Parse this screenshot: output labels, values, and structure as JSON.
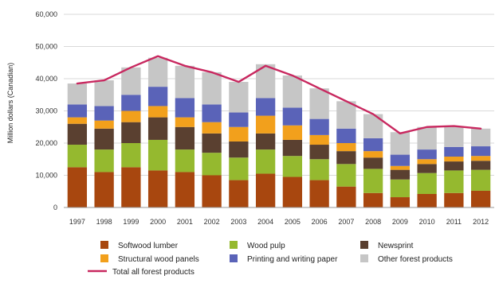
{
  "chart_data": {
    "type": "bar",
    "stacked": true,
    "ylabel": "Million dollars (Canadian)",
    "xlabel": "",
    "ylim": [
      0,
      60000
    ],
    "yticks": [
      0,
      10000,
      20000,
      30000,
      40000,
      50000,
      60000
    ],
    "ytick_labels": [
      "0",
      "10,000",
      "20,000",
      "30,000",
      "40,000",
      "50,000",
      "60,000"
    ],
    "grid": true,
    "legend_position": "bottom",
    "categories": [
      "1997",
      "1998",
      "1999",
      "2000",
      "2001",
      "2002",
      "2003",
      "2004",
      "2005",
      "2006",
      "2007",
      "2008",
      "2009",
      "2010",
      "2011",
      "2012"
    ],
    "series": [
      {
        "name": "Softwood lumber",
        "color": "#a8470f",
        "values": [
          12500,
          11000,
          12500,
          11500,
          11000,
          10000,
          8500,
          10500,
          9500,
          8500,
          6500,
          4500,
          3200,
          4200,
          4500,
          5200
        ]
      },
      {
        "name": "Wood pulp",
        "color": "#95b92f",
        "values": [
          7000,
          7000,
          7500,
          9500,
          7000,
          7000,
          7000,
          7500,
          6500,
          6500,
          7000,
          7500,
          5500,
          6500,
          7000,
          6500
        ]
      },
      {
        "name": "Newsprint",
        "color": "#5a4030",
        "values": [
          6500,
          6500,
          6500,
          7000,
          7000,
          6000,
          5000,
          5000,
          5000,
          4500,
          4000,
          3500,
          3000,
          2800,
          2800,
          2800
        ]
      },
      {
        "name": "Structural wood panels",
        "color": "#f2a01c",
        "values": [
          2000,
          2500,
          3500,
          3500,
          3000,
          3500,
          4500,
          5500,
          4500,
          3000,
          2500,
          2000,
          1200,
          1500,
          1500,
          1500
        ]
      },
      {
        "name": "Printing and writing paper",
        "color": "#5a63b8",
        "values": [
          4000,
          4500,
          5000,
          6000,
          6000,
          5500,
          4500,
          5500,
          5500,
          5000,
          4500,
          4000,
          3500,
          3000,
          3000,
          3000
        ]
      },
      {
        "name": "Other forest products",
        "color": "#c6c6c6",
        "values": [
          6500,
          8000,
          8500,
          9000,
          10000,
          10000,
          9500,
          10500,
          10000,
          9500,
          8500,
          7500,
          7000,
          7000,
          6500,
          5500
        ]
      }
    ],
    "line_series": {
      "name": "Total all forest products",
      "color": "#c8285f",
      "values": [
        38500,
        39500,
        43500,
        47000,
        44000,
        42000,
        39000,
        44000,
        41000,
        37000,
        33000,
        29000,
        23000,
        25000,
        25300,
        24500
      ]
    },
    "legend_order": [
      "Softwood lumber",
      "Wood pulp",
      "Newsprint",
      "Structural wood panels",
      "Printing and writing paper",
      "Other forest products",
      "Total all forest products"
    ]
  }
}
